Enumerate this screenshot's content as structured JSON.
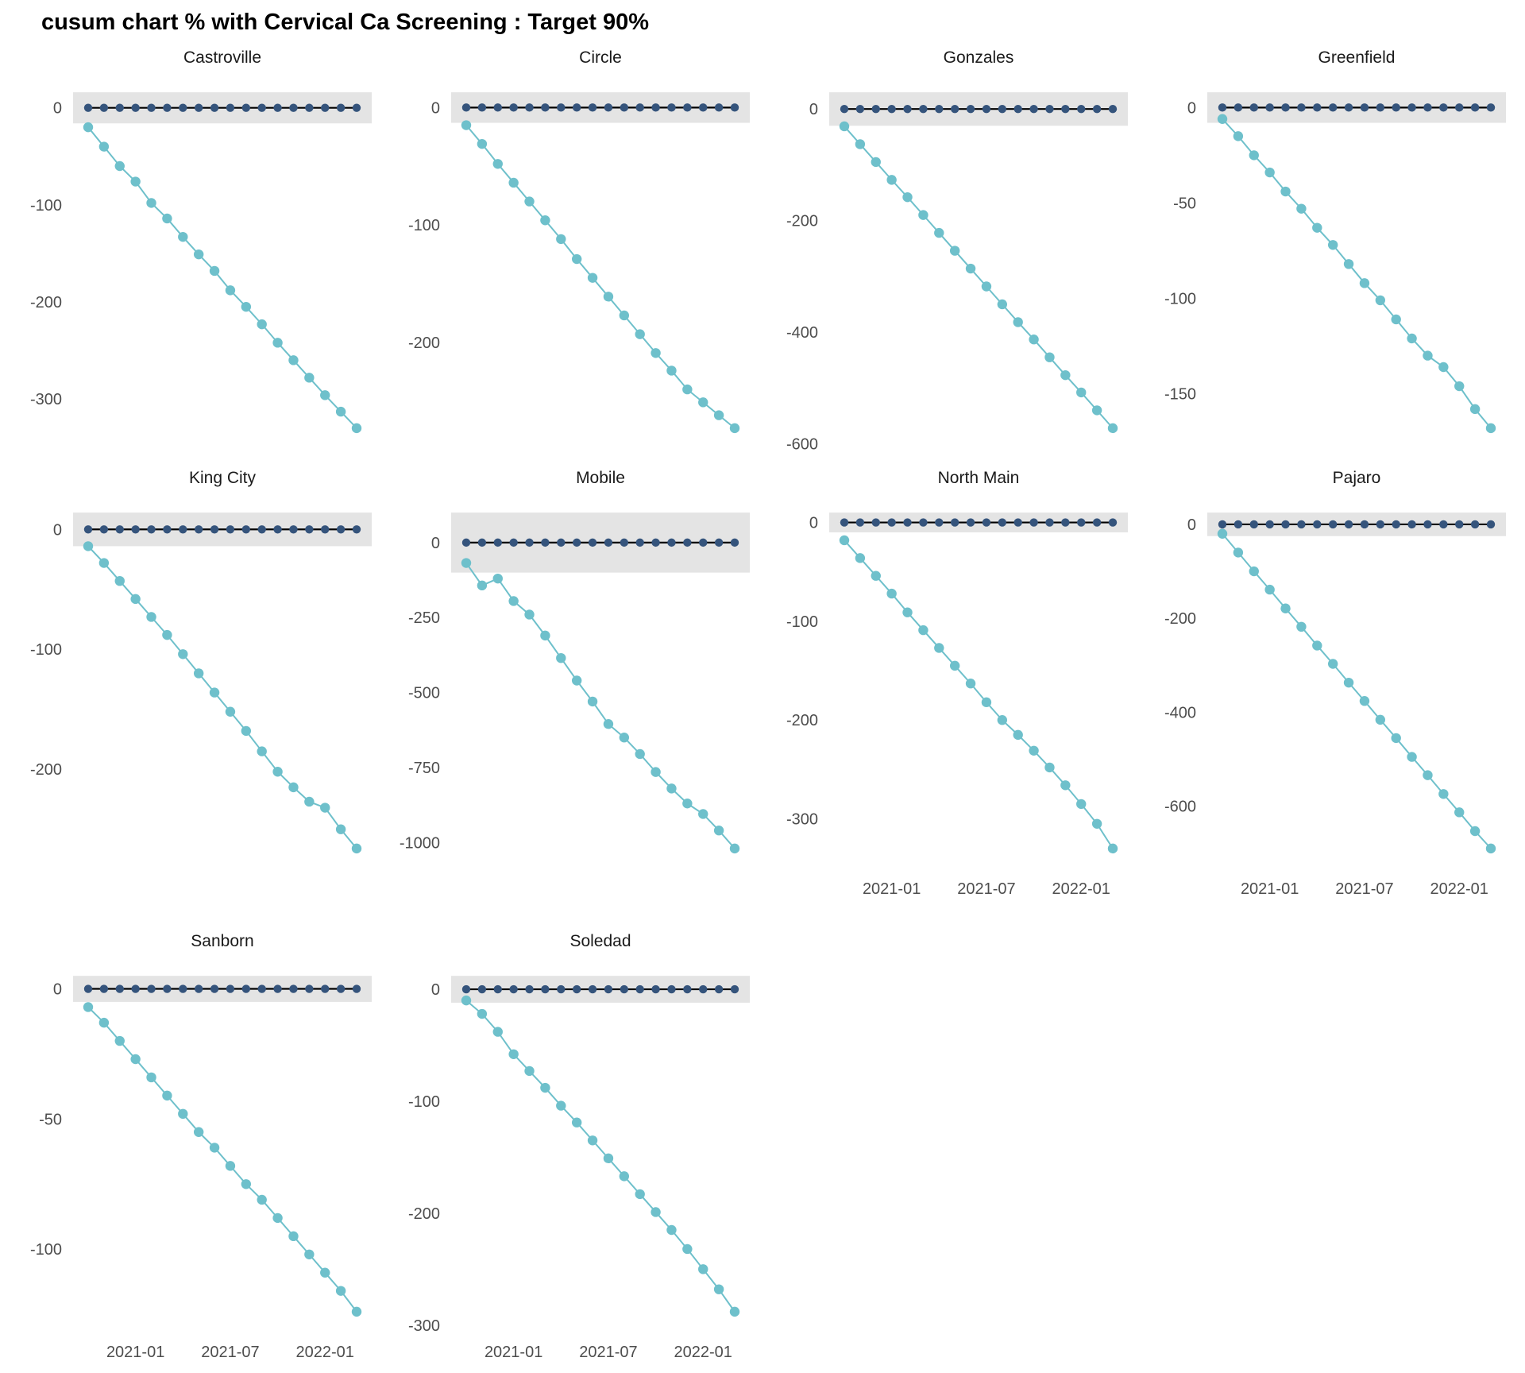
{
  "title": "cusum chart % with Cervical Ca Screening : Target 90%",
  "colors": {
    "observed_line": "#6ec0cb",
    "target_point": "#35547c",
    "band_fill": "#e4e4e4",
    "zero_line": "#000000",
    "axis_text": "#4d4d4d",
    "facet_title_text": "#1a1a1a",
    "background": "#ffffff"
  },
  "chart_data": {
    "type": "line",
    "subtype": "faceted-cusum-control-chart",
    "title": "cusum chart % with Cervical Ca Screening : Target 90%",
    "xlabel": "",
    "ylabel": "",
    "grid": "off",
    "legend": "none",
    "x": [
      "2020-10",
      "2020-11",
      "2020-12",
      "2021-01",
      "2021-02",
      "2021-03",
      "2021-04",
      "2021-05",
      "2021-06",
      "2021-07",
      "2021-08",
      "2021-09",
      "2021-10",
      "2021-11",
      "2021-12",
      "2022-01",
      "2022-02",
      "2022-03"
    ],
    "x_tick_labels": [
      "2021-01",
      "2021-07",
      "2022-01"
    ],
    "x_tick_indices": [
      3,
      9,
      15
    ],
    "target_value": 0,
    "facets": [
      {
        "title": "Castroville",
        "show_x_axis": false,
        "band_half": 16,
        "yticks": [
          0,
          -100,
          -200,
          -300
        ],
        "observed": [
          -20,
          -40,
          -60,
          -76,
          -98,
          -114,
          -133,
          -151,
          -168,
          -188,
          -205,
          -223,
          -242,
          -260,
          -278,
          -296,
          -313,
          -330
        ]
      },
      {
        "title": "Circle",
        "show_x_axis": false,
        "band_half": 13,
        "yticks": [
          0,
          -100,
          -200
        ],
        "observed": [
          -15,
          -31,
          -48,
          -64,
          -80,
          -96,
          -112,
          -129,
          -145,
          -161,
          -177,
          -193,
          -209,
          -224,
          -240,
          -251,
          -262,
          -273
        ]
      },
      {
        "title": "Gonzales",
        "show_x_axis": false,
        "band_half": 30,
        "yticks": [
          0,
          -200,
          -400,
          -600
        ],
        "observed": [
          -31,
          -63,
          -95,
          -127,
          -158,
          -190,
          -222,
          -254,
          -286,
          -318,
          -350,
          -382,
          -413,
          -445,
          -477,
          -508,
          -540,
          -572
        ]
      },
      {
        "title": "Greenfield",
        "show_x_axis": false,
        "band_half": 8,
        "yticks": [
          0,
          -50,
          -100,
          -150
        ],
        "observed": [
          -6,
          -15,
          -25,
          -34,
          -44,
          -53,
          -63,
          -72,
          -82,
          -92,
          -101,
          -111,
          -121,
          -130,
          -136,
          -146,
          -158,
          -168
        ]
      },
      {
        "title": "King City",
        "show_x_axis": false,
        "band_half": 14,
        "yticks": [
          0,
          -100,
          -200
        ],
        "observed": [
          -14,
          -28,
          -43,
          -58,
          -73,
          -88,
          -104,
          -120,
          -136,
          -152,
          -168,
          -185,
          -202,
          -215,
          -227,
          -232,
          -250,
          -266
        ]
      },
      {
        "title": "Mobile",
        "show_x_axis": false,
        "band_half": 100,
        "yticks": [
          0,
          -250,
          -500,
          -750,
          -1000
        ],
        "observed": [
          -68,
          -143,
          -120,
          -195,
          -240,
          -310,
          -385,
          -460,
          -530,
          -605,
          -650,
          -705,
          -765,
          -820,
          -870,
          -905,
          -960,
          -1020
        ]
      },
      {
        "title": "North Main",
        "show_x_axis": true,
        "band_half": 10,
        "yticks": [
          0,
          -100,
          -200,
          -300
        ],
        "observed": [
          -18,
          -36,
          -54,
          -72,
          -91,
          -109,
          -127,
          -145,
          -163,
          -182,
          -200,
          -215,
          -231,
          -248,
          -266,
          -285,
          -305,
          -330
        ]
      },
      {
        "title": "Pajaro",
        "show_x_axis": true,
        "band_half": 25,
        "yticks": [
          0,
          -200,
          -400,
          -600
        ],
        "observed": [
          -20,
          -60,
          -100,
          -139,
          -179,
          -218,
          -258,
          -297,
          -337,
          -376,
          -416,
          -455,
          -495,
          -534,
          -574,
          -613,
          -653,
          -690
        ]
      },
      {
        "title": "Sanborn",
        "show_x_axis": true,
        "band_half": 5,
        "yticks": [
          0,
          -50,
          -100
        ],
        "observed": [
          -7,
          -13,
          -20,
          -27,
          -34,
          -41,
          -48,
          -55,
          -61,
          -68,
          -75,
          -81,
          -88,
          -95,
          -102,
          -109,
          -116,
          -124
        ]
      },
      {
        "title": "Soledad",
        "show_x_axis": true,
        "band_half": 12,
        "yticks": [
          0,
          -100,
          -200,
          -300
        ],
        "observed": [
          -10,
          -22,
          -38,
          -58,
          -73,
          -88,
          -104,
          -119,
          -135,
          -151,
          -167,
          -183,
          -199,
          -215,
          -232,
          -250,
          -268,
          -288
        ]
      }
    ]
  }
}
